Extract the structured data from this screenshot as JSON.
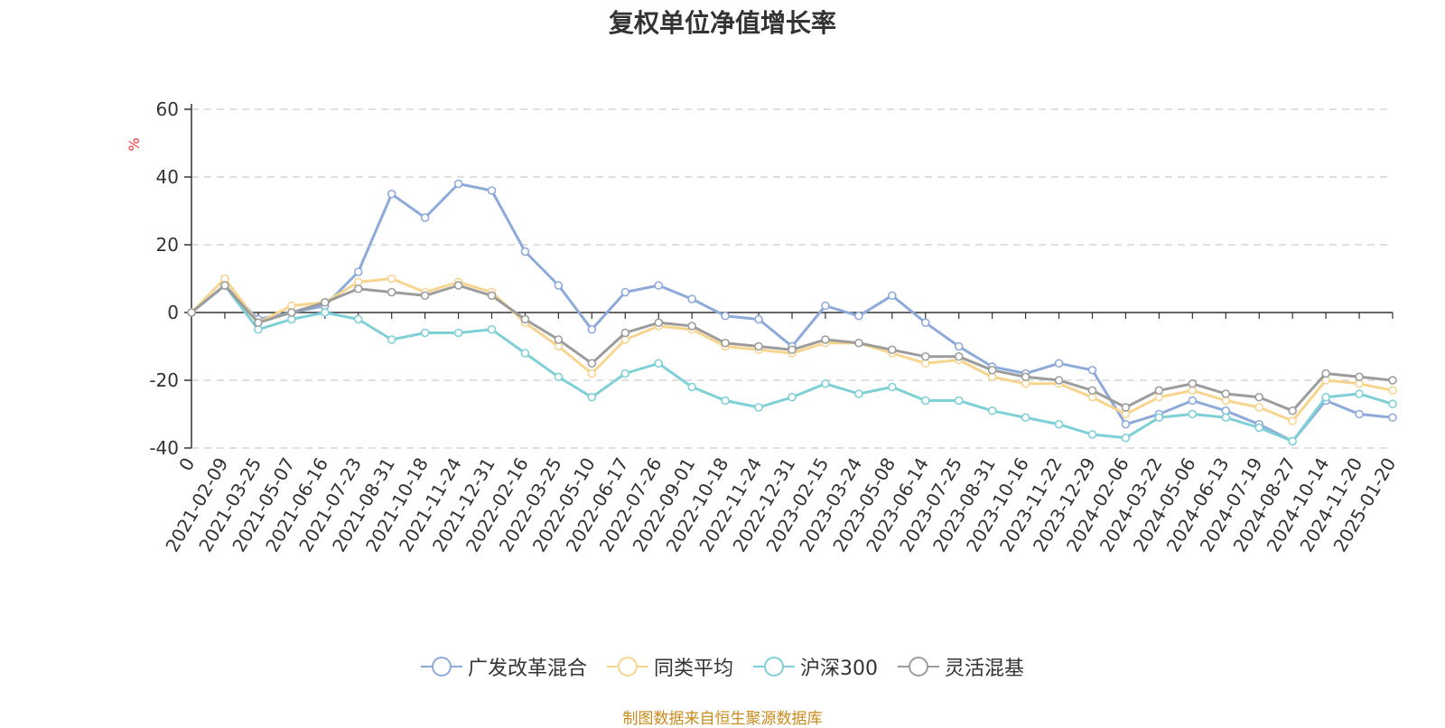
{
  "chart_data": {
    "type": "line",
    "title": "复权单位净值增长率",
    "ylabel": "%",
    "xlabel": "",
    "ylim": [
      -40,
      60
    ],
    "yticks": [
      -40,
      -20,
      0,
      20,
      40,
      60
    ],
    "grid": true,
    "legend_position": "bottom",
    "x_categories": [
      "0",
      "2021-02-09",
      "2021-03-25",
      "2021-05-07",
      "2021-06-16",
      "2021-07-23",
      "2021-08-31",
      "2021-10-18",
      "2021-11-24",
      "2021-12-31",
      "2022-02-16",
      "2022-03-25",
      "2022-05-10",
      "2022-06-17",
      "2022-07-26",
      "2022-09-01",
      "2022-10-18",
      "2022-11-24",
      "2022-12-31",
      "2023-02-15",
      "2023-03-24",
      "2023-05-08",
      "2023-06-14",
      "2023-07-25",
      "2023-08-31",
      "2023-10-16",
      "2023-11-22",
      "2023-12-29",
      "2024-02-06",
      "2024-03-22",
      "2024-05-06",
      "2024-06-13",
      "2024-07-19",
      "2024-08-27",
      "2024-10-14",
      "2024-11-20",
      "2025-01-20"
    ],
    "series": [
      {
        "name": "广发改革混合",
        "color": "#8eaadb",
        "values": [
          0,
          8,
          -2,
          0,
          2,
          12,
          35,
          28,
          38,
          36,
          18,
          8,
          -5,
          6,
          8,
          4,
          -1,
          -2,
          -10,
          2,
          -1,
          5,
          -3,
          -10,
          -16,
          -18,
          -15,
          -17,
          -33,
          -30,
          -26,
          -29,
          -33,
          -38,
          -26,
          -30,
          -31
        ]
      },
      {
        "name": "同类平均",
        "color": "#f7d58f",
        "values": [
          0,
          10,
          -3,
          2,
          3,
          9,
          10,
          6,
          9,
          6,
          -3,
          -10,
          -18,
          -8,
          -4,
          -5,
          -10,
          -11,
          -12,
          -9,
          -9,
          -12,
          -15,
          -14,
          -19,
          -21,
          -21,
          -25,
          -30,
          -25,
          -23,
          -26,
          -28,
          -32,
          -20,
          -21,
          -23
        ]
      },
      {
        "name": "沪深300",
        "color": "#7fd0d6",
        "values": [
          0,
          8,
          -5,
          -2,
          0,
          -2,
          -8,
          -6,
          -6,
          -5,
          -12,
          -19,
          -25,
          -18,
          -15,
          -22,
          -26,
          -28,
          -25,
          -21,
          -24,
          -22,
          -26,
          -26,
          -29,
          -31,
          -33,
          -36,
          -37,
          -31,
          -30,
          -31,
          -34,
          -38,
          -25,
          -24,
          -27
        ]
      },
      {
        "name": "灵活混基",
        "color": "#9c9c9c",
        "values": [
          0,
          8,
          -3,
          0,
          3,
          7,
          6,
          5,
          8,
          5,
          -2,
          -8,
          -15,
          -6,
          -3,
          -4,
          -9,
          -10,
          -11,
          -8,
          -9,
          -11,
          -13,
          -13,
          -17,
          -19,
          -20,
          -23,
          -28,
          -23,
          -21,
          -24,
          -25,
          -29,
          -18,
          -19,
          -20
        ]
      }
    ]
  },
  "legend": {
    "items": [
      "广发改革混合",
      "同类平均",
      "沪深300",
      "灵活混基"
    ]
  },
  "footer": {
    "source_note": "制图数据来自恒生聚源数据库"
  }
}
